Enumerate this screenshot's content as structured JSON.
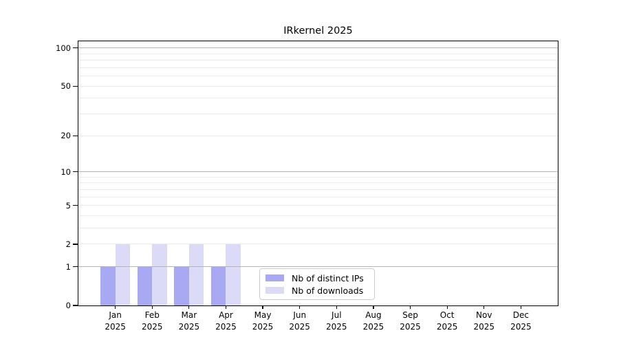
{
  "chart_data": {
    "type": "bar",
    "title": "IRkernel 2025",
    "categories": [
      "Jan",
      "Feb",
      "Mar",
      "Apr",
      "May",
      "Jun",
      "Jul",
      "Aug",
      "Sep",
      "Oct",
      "Nov",
      "Dec"
    ],
    "category_year": "2025",
    "series": [
      {
        "name": "Nb of distinct IPs",
        "color": "#a8a8f3",
        "values": [
          1,
          1,
          1,
          1,
          0,
          0,
          0,
          0,
          0,
          0,
          0,
          0
        ]
      },
      {
        "name": "Nb of downloads",
        "color": "#dbdbf8",
        "values": [
          2,
          2,
          2,
          2,
          0,
          0,
          0,
          0,
          0,
          0,
          0,
          0
        ]
      }
    ],
    "yticks": [
      0,
      1,
      2,
      5,
      10,
      20,
      50,
      100
    ],
    "major_gridline_values": [
      1,
      10,
      100
    ],
    "minor_gridline_values": [
      2,
      3,
      4,
      5,
      6,
      7,
      8,
      9,
      20,
      30,
      40,
      50,
      60,
      70,
      80,
      90
    ],
    "scale": "log1p",
    "ylim": [
      0,
      113
    ],
    "grid": true,
    "legend_position": "lower center",
    "colors": {
      "major_grid": "#b4b4b4",
      "minor_grid": "#eaeaea",
      "axis": "#000000",
      "text": "#000000",
      "background": "#ffffff"
    }
  }
}
